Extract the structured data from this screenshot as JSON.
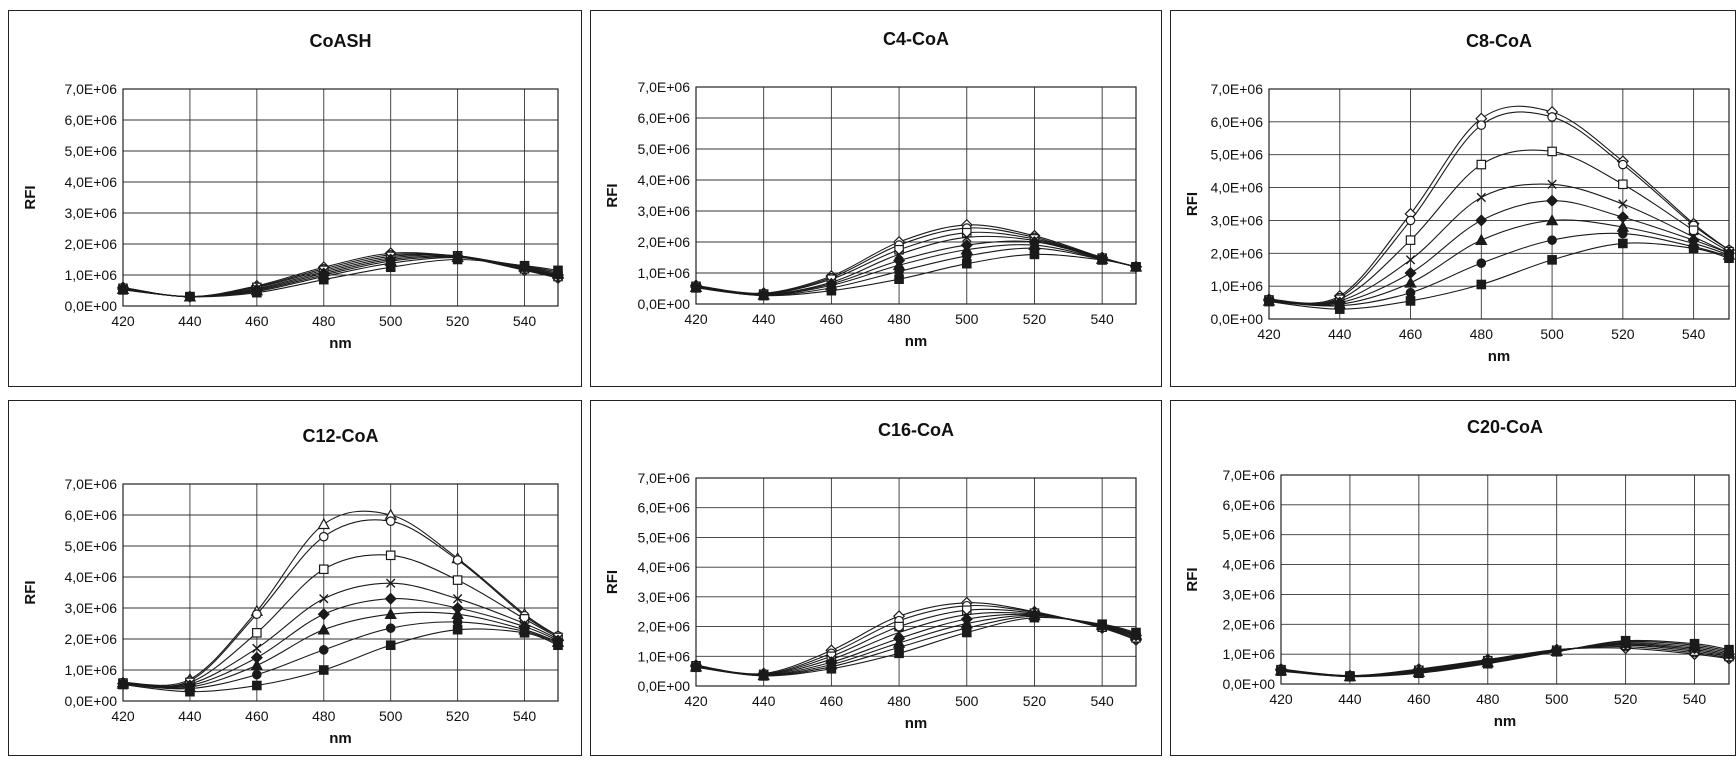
{
  "figure": {
    "shared": {
      "xlabel": "nm",
      "ylabel": "RFI",
      "xlim": [
        420,
        550
      ],
      "ylim": [
        0,
        7000000
      ],
      "x_ticks": [
        420,
        440,
        460,
        480,
        500,
        520,
        540
      ],
      "y_tick_labels": [
        "0,0E+00",
        "1,0E+06",
        "2,0E+06",
        "3,0E+06",
        "4,0E+06",
        "5,0E+06",
        "6,0E+06",
        "7,0E+06"
      ],
      "line_color": "#1a1a1a"
    }
  },
  "chart_data": [
    {
      "type": "line",
      "title": "CoASH",
      "xlabel": "nm",
      "ylabel": "RFI",
      "ylim": [
        0,
        7000000
      ],
      "x": [
        420,
        440,
        460,
        480,
        500,
        520,
        540,
        550
      ],
      "series": [
        {
          "marker": "diamond-open",
          "values": [
            600000,
            300000,
            650000,
            1250000,
            1700000,
            1600000,
            1150000,
            900000
          ]
        },
        {
          "marker": "circle-open",
          "values": [
            580000,
            300000,
            620000,
            1200000,
            1650000,
            1600000,
            1180000,
            920000
          ]
        },
        {
          "marker": "square-open",
          "values": [
            570000,
            300000,
            600000,
            1150000,
            1600000,
            1620000,
            1200000,
            950000
          ]
        },
        {
          "marker": "x",
          "values": [
            560000,
            300000,
            560000,
            1100000,
            1550000,
            1620000,
            1220000,
            980000
          ]
        },
        {
          "marker": "diamond",
          "values": [
            550000,
            300000,
            530000,
            1050000,
            1500000,
            1600000,
            1250000,
            1000000
          ]
        },
        {
          "marker": "triangle",
          "values": [
            540000,
            300000,
            500000,
            1000000,
            1450000,
            1580000,
            1260000,
            1050000
          ]
        },
        {
          "marker": "circle",
          "values": [
            530000,
            300000,
            470000,
            950000,
            1380000,
            1560000,
            1280000,
            1100000
          ]
        },
        {
          "marker": "square",
          "values": [
            520000,
            300000,
            430000,
            850000,
            1250000,
            1500000,
            1300000,
            1150000
          ]
        }
      ]
    },
    {
      "type": "line",
      "title": "C4-CoA",
      "xlabel": "nm",
      "ylabel": "RFI",
      "ylim": [
        0,
        7000000
      ],
      "x": [
        420,
        440,
        460,
        480,
        500,
        520,
        540,
        550
      ],
      "series": [
        {
          "marker": "diamond-open",
          "values": [
            600000,
            350000,
            900000,
            2000000,
            2550000,
            2200000,
            1500000,
            1200000
          ]
        },
        {
          "marker": "circle-open",
          "values": [
            580000,
            330000,
            850000,
            1900000,
            2450000,
            2150000,
            1480000,
            1200000
          ]
        },
        {
          "marker": "square-open",
          "values": [
            570000,
            320000,
            800000,
            1750000,
            2300000,
            2100000,
            1480000,
            1200000
          ]
        },
        {
          "marker": "x",
          "values": [
            560000,
            310000,
            700000,
            1600000,
            2150000,
            2050000,
            1470000,
            1200000
          ]
        },
        {
          "marker": "diamond",
          "values": [
            550000,
            300000,
            650000,
            1400000,
            1900000,
            2000000,
            1460000,
            1200000
          ]
        },
        {
          "marker": "triangle",
          "values": [
            540000,
            290000,
            600000,
            1250000,
            1750000,
            1900000,
            1450000,
            1200000
          ]
        },
        {
          "marker": "circle",
          "values": [
            530000,
            280000,
            520000,
            1050000,
            1550000,
            1800000,
            1440000,
            1200000
          ]
        },
        {
          "marker": "square",
          "values": [
            520000,
            270000,
            430000,
            800000,
            1300000,
            1600000,
            1420000,
            1200000
          ]
        }
      ]
    },
    {
      "type": "line",
      "title": "C8-CoA",
      "xlabel": "nm",
      "ylabel": "RFI",
      "ylim": [
        0,
        7000000
      ],
      "x": [
        420,
        440,
        460,
        480,
        500,
        520,
        540,
        550
      ],
      "series": [
        {
          "marker": "diamond-open",
          "values": [
            600000,
            700000,
            3200000,
            6100000,
            6300000,
            4800000,
            2900000,
            2100000
          ]
        },
        {
          "marker": "circle-open",
          "values": [
            590000,
            650000,
            3000000,
            5900000,
            6150000,
            4700000,
            2850000,
            2100000
          ]
        },
        {
          "marker": "square-open",
          "values": [
            580000,
            600000,
            2400000,
            4700000,
            5100000,
            4100000,
            2700000,
            2050000
          ]
        },
        {
          "marker": "x",
          "values": [
            570000,
            550000,
            1800000,
            3700000,
            4100000,
            3500000,
            2500000,
            2000000
          ]
        },
        {
          "marker": "diamond",
          "values": [
            560000,
            500000,
            1400000,
            3000000,
            3600000,
            3100000,
            2400000,
            2000000
          ]
        },
        {
          "marker": "triangle",
          "values": [
            550000,
            450000,
            1100000,
            2400000,
            3000000,
            2800000,
            2300000,
            1950000
          ]
        },
        {
          "marker": "circle",
          "values": [
            540000,
            400000,
            800000,
            1700000,
            2400000,
            2600000,
            2200000,
            1900000
          ]
        },
        {
          "marker": "square",
          "values": [
            530000,
            300000,
            550000,
            1050000,
            1800000,
            2300000,
            2150000,
            1850000
          ]
        }
      ]
    },
    {
      "type": "line",
      "title": "C12-CoA",
      "xlabel": "nm",
      "ylabel": "RFI",
      "ylim": [
        0,
        7000000
      ],
      "x": [
        420,
        440,
        460,
        480,
        500,
        520,
        540,
        550
      ],
      "series": [
        {
          "marker": "triangle-open",
          "values": [
            600000,
            700000,
            2900000,
            5700000,
            6000000,
            4600000,
            2800000,
            2100000
          ]
        },
        {
          "marker": "circle-open",
          "values": [
            590000,
            650000,
            2800000,
            5300000,
            5800000,
            4550000,
            2750000,
            2100000
          ]
        },
        {
          "marker": "square-open",
          "values": [
            580000,
            600000,
            2200000,
            4250000,
            4700000,
            3900000,
            2650000,
            2050000
          ]
        },
        {
          "marker": "x",
          "values": [
            570000,
            550000,
            1700000,
            3300000,
            3800000,
            3300000,
            2500000,
            2000000
          ]
        },
        {
          "marker": "diamond",
          "values": [
            560000,
            500000,
            1400000,
            2800000,
            3300000,
            3000000,
            2400000,
            1950000
          ]
        },
        {
          "marker": "triangle",
          "values": [
            550000,
            450000,
            1150000,
            2300000,
            2800000,
            2800000,
            2300000,
            1900000
          ]
        },
        {
          "marker": "circle",
          "values": [
            540000,
            400000,
            850000,
            1650000,
            2350000,
            2550000,
            2250000,
            1850000
          ]
        },
        {
          "marker": "square",
          "values": [
            530000,
            300000,
            500000,
            1000000,
            1800000,
            2300000,
            2200000,
            1800000
          ]
        }
      ]
    },
    {
      "type": "line",
      "title": "C16-CoA",
      "xlabel": "nm",
      "ylabel": "RFI",
      "ylim": [
        0,
        7000000
      ],
      "x": [
        420,
        440,
        460,
        480,
        500,
        520,
        540,
        550
      ],
      "series": [
        {
          "marker": "diamond-open",
          "values": [
            700000,
            420000,
            1200000,
            2350000,
            2800000,
            2500000,
            1950000,
            1550000
          ]
        },
        {
          "marker": "circle-open",
          "values": [
            690000,
            400000,
            1100000,
            2200000,
            2700000,
            2480000,
            1960000,
            1580000
          ]
        },
        {
          "marker": "square-open",
          "values": [
            680000,
            390000,
            1000000,
            2000000,
            2550000,
            2450000,
            1980000,
            1620000
          ]
        },
        {
          "marker": "x",
          "values": [
            670000,
            380000,
            900000,
            1800000,
            2400000,
            2420000,
            2000000,
            1660000
          ]
        },
        {
          "marker": "diamond",
          "values": [
            660000,
            370000,
            800000,
            1600000,
            2250000,
            2400000,
            2020000,
            1700000
          ]
        },
        {
          "marker": "triangle",
          "values": [
            650000,
            360000,
            720000,
            1450000,
            2100000,
            2380000,
            2040000,
            1730000
          ]
        },
        {
          "marker": "circle",
          "values": [
            640000,
            350000,
            650000,
            1300000,
            1950000,
            2350000,
            2060000,
            1760000
          ]
        },
        {
          "marker": "square",
          "values": [
            630000,
            340000,
            580000,
            1100000,
            1800000,
            2300000,
            2080000,
            1800000
          ]
        }
      ]
    },
    {
      "type": "line",
      "title": "C20-CoA",
      "xlabel": "nm",
      "ylabel": "RFI",
      "ylim": [
        0,
        7000000
      ],
      "x": [
        420,
        440,
        460,
        480,
        500,
        520,
        540,
        550
      ],
      "series": [
        {
          "marker": "diamond-open",
          "values": [
            500000,
            280000,
            500000,
            820000,
            1150000,
            1200000,
            1000000,
            850000
          ]
        },
        {
          "marker": "circle-open",
          "values": [
            490000,
            275000,
            480000,
            800000,
            1140000,
            1250000,
            1050000,
            880000
          ]
        },
        {
          "marker": "square-open",
          "values": [
            480000,
            270000,
            460000,
            780000,
            1130000,
            1300000,
            1100000,
            920000
          ]
        },
        {
          "marker": "x",
          "values": [
            470000,
            265000,
            440000,
            760000,
            1120000,
            1320000,
            1150000,
            960000
          ]
        },
        {
          "marker": "diamond",
          "values": [
            460000,
            260000,
            420000,
            740000,
            1110000,
            1350000,
            1200000,
            1000000
          ]
        },
        {
          "marker": "triangle",
          "values": [
            450000,
            255000,
            400000,
            720000,
            1100000,
            1380000,
            1250000,
            1050000
          ]
        },
        {
          "marker": "circle",
          "values": [
            440000,
            250000,
            380000,
            700000,
            1090000,
            1420000,
            1300000,
            1100000
          ]
        },
        {
          "marker": "square",
          "values": [
            430000,
            245000,
            360000,
            680000,
            1080000,
            1450000,
            1350000,
            1150000
          ]
        }
      ]
    }
  ]
}
